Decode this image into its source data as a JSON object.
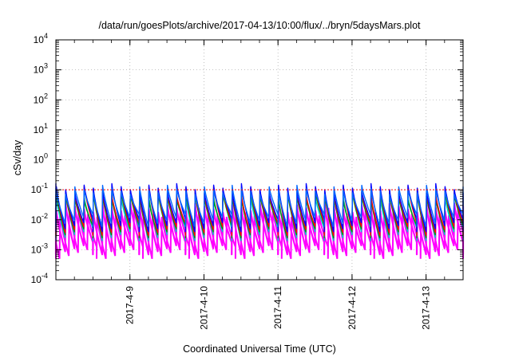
{
  "chart_data": {
    "type": "line",
    "title": "/data/run/goesPlots/archive/2017-04-13/10:00/flux/../bryn/5daysMars.plot",
    "xlabel": "Coordinated Universal Time (UTC)",
    "ylabel": "cSv/day",
    "y_scale": "log",
    "ylim": [
      0.0001,
      10000
    ],
    "y_ticks": [
      {
        "value": 0.0001,
        "base": "10",
        "exp": "-4"
      },
      {
        "value": 0.001,
        "base": "10",
        "exp": "-3"
      },
      {
        "value": 0.01,
        "base": "10",
        "exp": "-2"
      },
      {
        "value": 0.1,
        "base": "10",
        "exp": "-1"
      },
      {
        "value": 1,
        "base": "10",
        "exp": "0"
      },
      {
        "value": 10,
        "base": "10",
        "exp": "1"
      },
      {
        "value": 100,
        "base": "10",
        "exp": "2"
      },
      {
        "value": 1000,
        "base": "10",
        "exp": "3"
      },
      {
        "value": 10000,
        "base": "10",
        "exp": "4"
      }
    ],
    "x_ticks": [
      "2017-4-9",
      "2017-4-10",
      "2017-4-11",
      "2017-4-12",
      "2017-4-13"
    ],
    "x_range": [
      "2017-04-08 00:00",
      "2017-04-13 12:00"
    ],
    "grid": true,
    "reference_line": {
      "value": 0.1,
      "color": "#ff0000"
    },
    "series_colors": [
      "#0000ff",
      "#ff0000",
      "#009900",
      "#00cccc",
      "#ff00ff",
      "#0066ff"
    ],
    "series": [
      {
        "color": "#0000ff",
        "cycle_hours": 3,
        "peak": 0.16,
        "trough": 0.004
      },
      {
        "color": "#ff0000",
        "cycle_hours": 3,
        "peak": 0.13,
        "trough": 0.003
      },
      {
        "color": "#009900",
        "cycle_hours": 3,
        "peak": 0.09,
        "trough": 0.0025
      },
      {
        "color": "#00cccc",
        "cycle_hours": 3,
        "peak": 0.11,
        "trough": 0.002
      },
      {
        "color": "#ff00ff",
        "cycle_hours": 3,
        "peak": 0.035,
        "trough": 0.0007
      },
      {
        "color": "#0066ff",
        "cycle_hours": 3,
        "peak": 0.14,
        "trough": 0.006
      }
    ]
  }
}
